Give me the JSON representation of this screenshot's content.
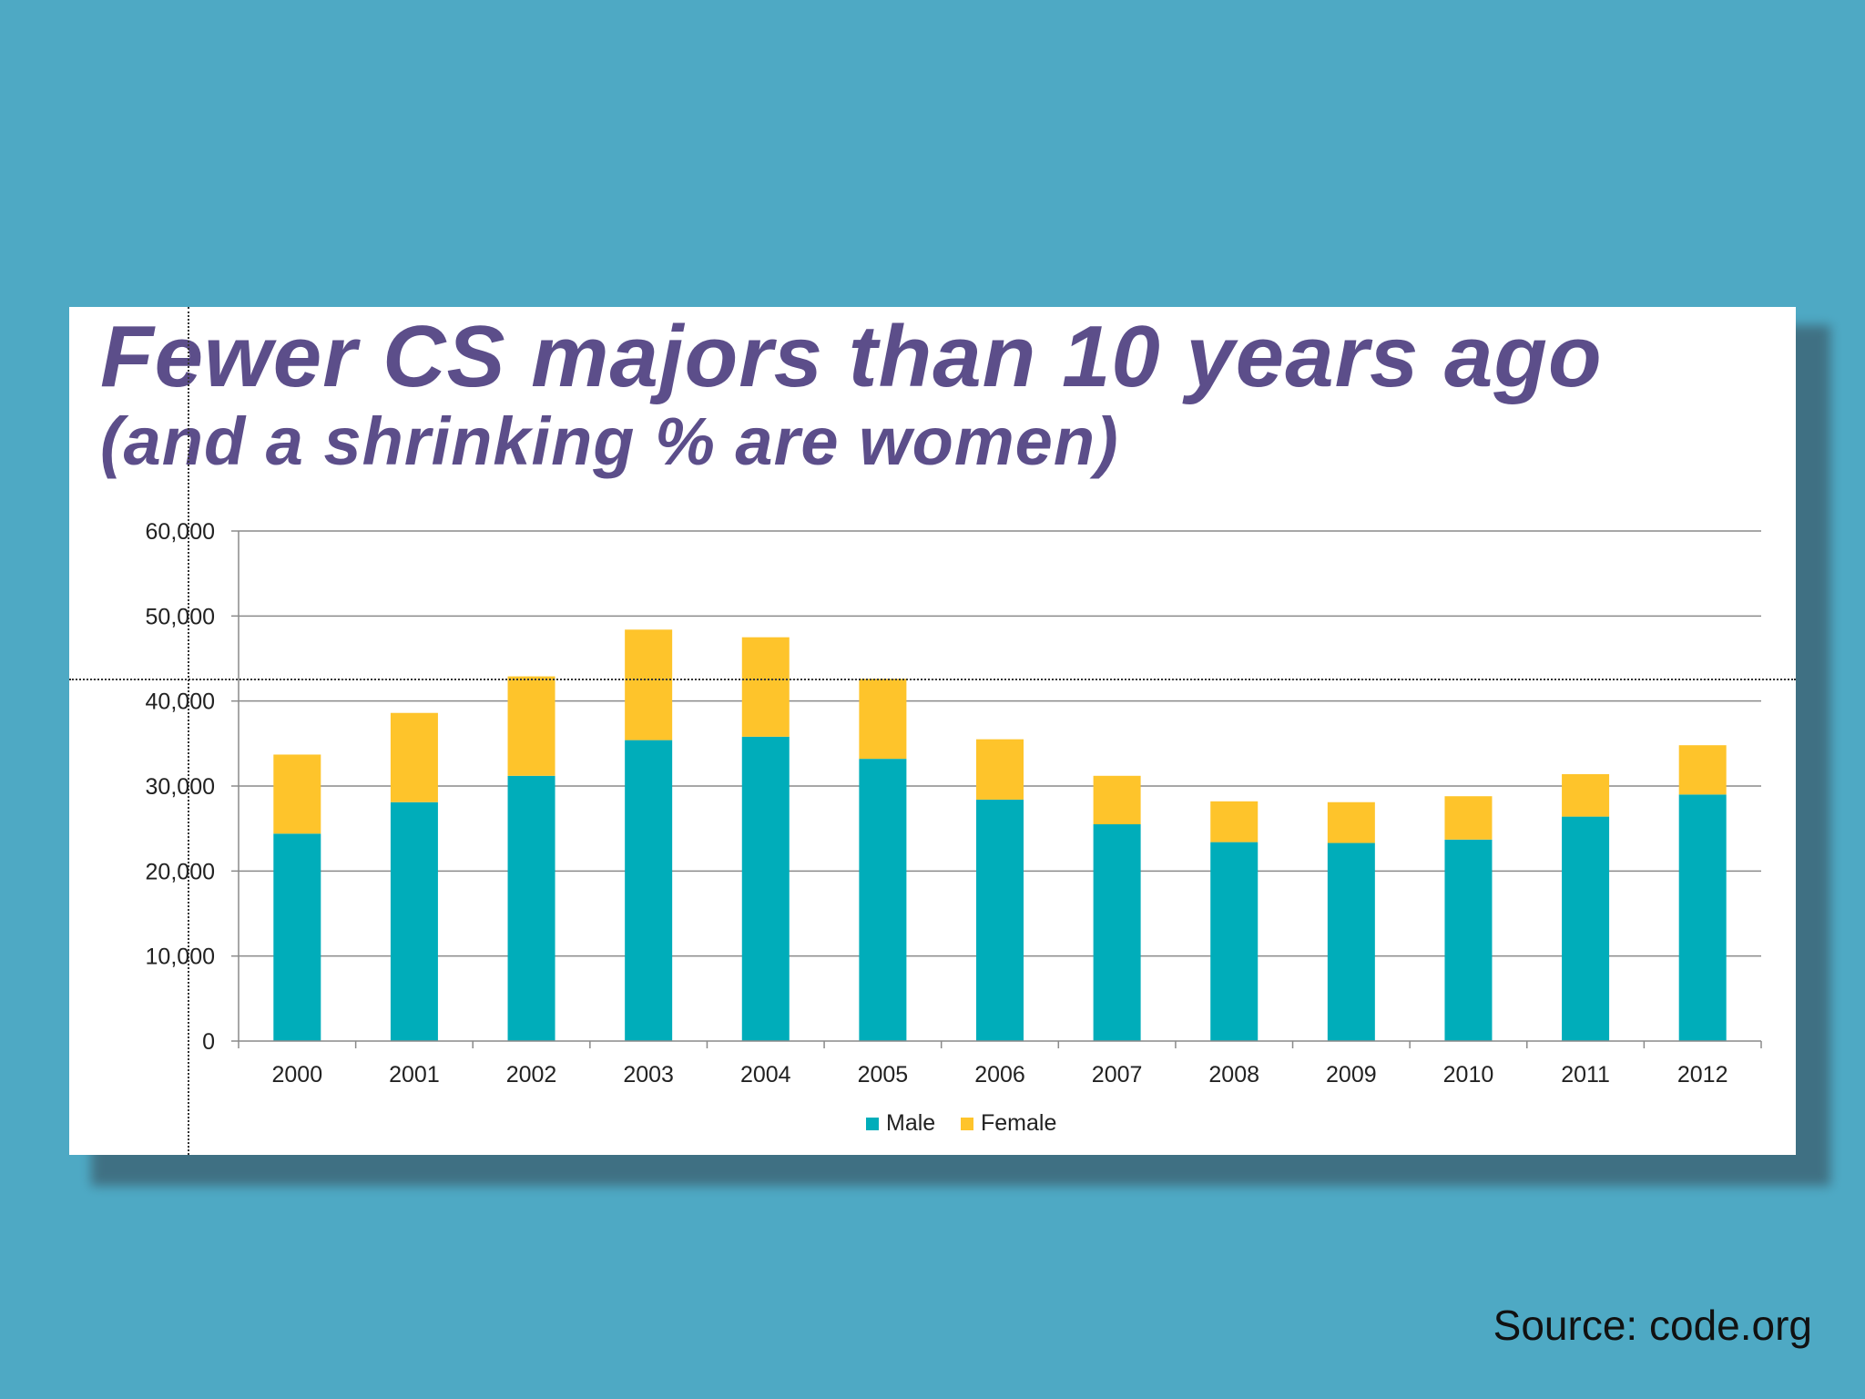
{
  "slide": {
    "title": "Fewer CS majors than 10 years ago",
    "subtitle": "(and a shrinking % are women)",
    "source": "Source: code.org"
  },
  "chart_data": {
    "type": "bar",
    "stacked": true,
    "title": "Fewer CS majors than 10 years ago",
    "subtitle": "(and a shrinking % are women)",
    "categories": [
      "2000",
      "2001",
      "2002",
      "2003",
      "2004",
      "2005",
      "2006",
      "2007",
      "2008",
      "2009",
      "2010",
      "2011",
      "2012"
    ],
    "series": [
      {
        "name": "Male",
        "color": "#00ADBA",
        "values": [
          24400,
          28100,
          31200,
          35400,
          35800,
          33200,
          28400,
          25500,
          23400,
          23300,
          23700,
          26400,
          29000
        ]
      },
      {
        "name": "Female",
        "color": "#FEC42B",
        "values": [
          9300,
          10500,
          11700,
          13000,
          11700,
          9400,
          7100,
          5700,
          4800,
          4800,
          5100,
          5000,
          5800
        ]
      }
    ],
    "yticks": [
      "0",
      "10,000",
      "20,000",
      "30,000",
      "40,000",
      "50,000",
      "60,000"
    ],
    "ylim": [
      0,
      60000
    ],
    "grid": true,
    "legend": "bottom-center",
    "xlabel": "",
    "ylabel": ""
  },
  "colors": {
    "background": "#4EA9C4",
    "title": "#5C4E8A",
    "male": "#00ADBA",
    "female": "#FEC42B"
  }
}
